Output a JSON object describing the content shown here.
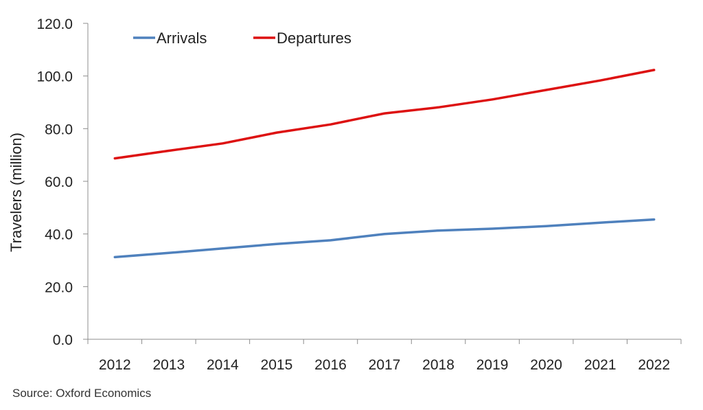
{
  "chart_data": {
    "type": "line",
    "title": "",
    "ylabel": "Travelers (million)",
    "xlabel": "",
    "x": [
      "2012",
      "2013",
      "2014",
      "2015",
      "2016",
      "2017",
      "2018",
      "2019",
      "2020",
      "2021",
      "2022"
    ],
    "ylim": [
      0,
      120
    ],
    "yticks": [
      "0.0",
      "20.0",
      "40.0",
      "60.0",
      "80.0",
      "100.0",
      "120.0"
    ],
    "grid": false,
    "legend_position": "top-left",
    "series": [
      {
        "name": "Arrivals",
        "color": "#4f81bd",
        "values": [
          31.2,
          32.8,
          34.5,
          36.2,
          37.6,
          40.0,
          41.3,
          42.0,
          43.0,
          44.3,
          45.5
        ]
      },
      {
        "name": "Departures",
        "color": "#dd1111",
        "values": [
          68.7,
          71.6,
          74.4,
          78.5,
          81.6,
          85.8,
          88.1,
          91.1,
          94.7,
          98.3,
          102.3
        ]
      }
    ]
  },
  "source": "Source:  Oxford Economics"
}
